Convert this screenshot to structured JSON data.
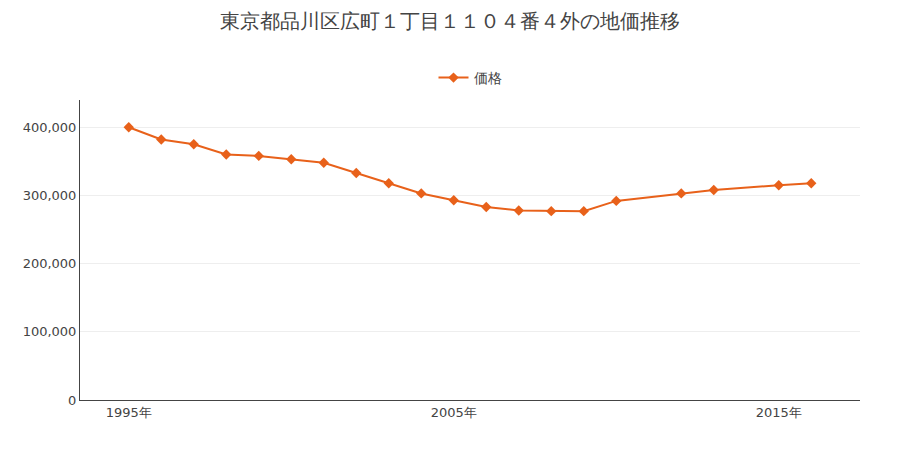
{
  "chart_data": {
    "type": "line",
    "title": "東京都品川区広町１丁目１１０４番４外の地価推移",
    "x": [
      1995,
      1996,
      1997,
      1998,
      1999,
      2000,
      2001,
      2002,
      2003,
      2004,
      2005,
      2006,
      2007,
      2008,
      2009,
      2010,
      2012,
      2013,
      2015,
      2016
    ],
    "series": [
      {
        "name": "価格",
        "color": "#e8611a",
        "marker": "diamond",
        "values": [
          400000,
          382000,
          375000,
          360000,
          358000,
          353000,
          348000,
          333000,
          318000,
          303000,
          293000,
          283000,
          278000,
          277000,
          277000,
          292000,
          303000,
          308000,
          315000,
          318000
        ]
      }
    ],
    "xlim": [
      1993.5,
      2017.5
    ],
    "xticks": [
      {
        "value": 1995,
        "label": "1995年"
      },
      {
        "value": 2005,
        "label": "2005年"
      },
      {
        "value": 2015,
        "label": "2015年"
      }
    ],
    "ylim": [
      0,
      440000
    ],
    "yticks": [
      0,
      {
        "value": 100000,
        "label": "100,000"
      },
      {
        "value": 200000,
        "label": "200,000"
      },
      {
        "value": 300000,
        "label": "300,000"
      },
      {
        "value": 400000,
        "label": "400,000"
      }
    ],
    "grid": "y",
    "legend": "top"
  }
}
